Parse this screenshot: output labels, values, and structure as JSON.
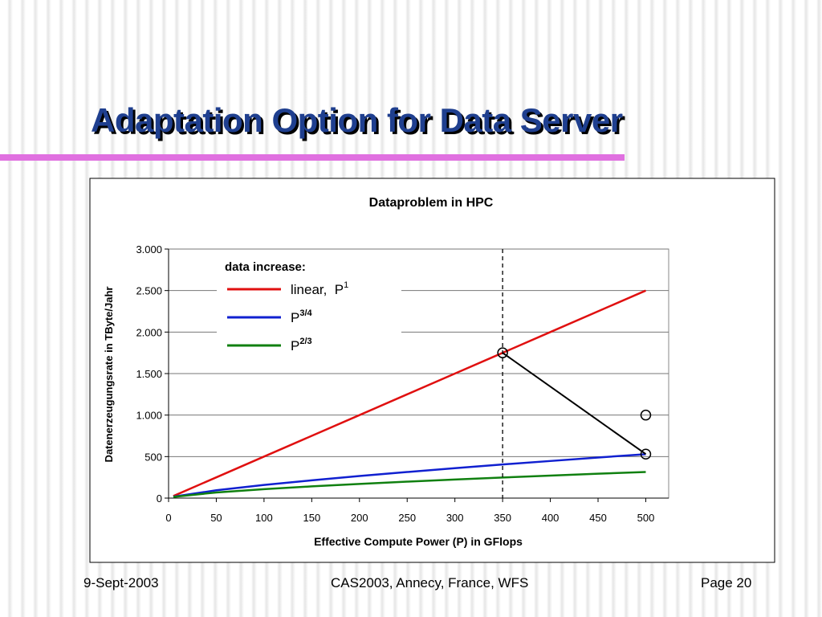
{
  "slide": {
    "title": "Adaptation Option for Data Server",
    "footer_left": "9-Sept-2003",
    "footer_center": "CAS2003, Annecy, France, WFS",
    "footer_right": "Page 20"
  },
  "chart_data": {
    "type": "line",
    "title": "Dataproblem in HPC",
    "xlabel": "Effective Compute Power (P) in GFlops",
    "ylabel": "Datenerzeugungsrate in TByte/Jahr",
    "x": [
      5,
      50,
      100,
      150,
      200,
      250,
      300,
      350,
      400,
      450,
      500
    ],
    "series": [
      {
        "name": "linear,  P",
        "superscript": "1",
        "color": "#e01010",
        "values": [
          25,
          250,
          500,
          750,
          1000,
          1250,
          1500,
          1750,
          2000,
          2250,
          2500
        ]
      },
      {
        "name": "P",
        "superscript": "3/4",
        "color": "#1020d0",
        "values": [
          17,
          94,
          158,
          214,
          266,
          314,
          360,
          405,
          447,
          489,
          529
        ]
      },
      {
        "name": "P",
        "superscript": "2/3",
        "color": "#108010",
        "values": [
          15,
          68,
          108,
          141,
          171,
          198,
          224,
          248,
          271,
          294,
          315
        ]
      }
    ],
    "legend_title": "data increase:",
    "xlim": [
      0,
      524
    ],
    "xticks": [
      0,
      50,
      100,
      150,
      200,
      250,
      300,
      350,
      400,
      450,
      500
    ],
    "ylim": [
      0,
      3000
    ],
    "yticks": [
      0,
      500,
      {
        "value": 1000,
        "label": "1.000"
      },
      {
        "value": 1500,
        "label": "1.500"
      },
      {
        "value": 2000,
        "label": "2.000"
      },
      {
        "value": 2500,
        "label": "2.500"
      },
      {
        "value": 3000,
        "label": "3.000"
      }
    ],
    "grid": true,
    "annotations": {
      "vline_x": 350,
      "circles": [
        {
          "x": 350,
          "y": 1750
        },
        {
          "x": 500,
          "y": 1000
        },
        {
          "x": 500,
          "y": 530
        }
      ],
      "connector": [
        {
          "x": 350,
          "y": 1750
        },
        {
          "x": 500,
          "y": 530
        }
      ]
    }
  }
}
